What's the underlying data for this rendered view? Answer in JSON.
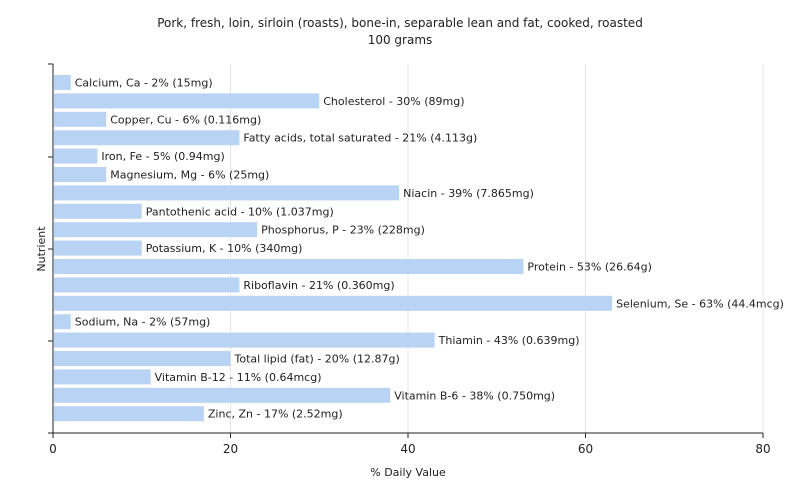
{
  "chart_data": {
    "type": "bar",
    "orientation": "horizontal",
    "title": "Pork, fresh, loin, sirloin (roasts), bone-in, separable lean and fat, cooked, roasted",
    "subtitle": "100 grams",
    "xlabel": "% Daily Value",
    "ylabel": "Nutrient",
    "xlim": [
      0,
      80
    ],
    "xticks": [
      0,
      20,
      40,
      60,
      80
    ],
    "grid": true,
    "bar_color": "#b9d3f5",
    "categories": [
      "Calcium, Ca",
      "Cholesterol",
      "Copper, Cu",
      "Fatty acids, total saturated",
      "Iron, Fe",
      "Magnesium, Mg",
      "Niacin",
      "Pantothenic acid",
      "Phosphorus, P",
      "Potassium, K",
      "Protein",
      "Riboflavin",
      "Selenium, Se",
      "Sodium, Na",
      "Thiamin",
      "Total lipid (fat)",
      "Vitamin B-12",
      "Vitamin B-6",
      "Zinc, Zn"
    ],
    "values": [
      2,
      30,
      6,
      21,
      5,
      6,
      39,
      10,
      23,
      10,
      53,
      21,
      63,
      2,
      43,
      20,
      11,
      38,
      17
    ],
    "labels": [
      "Calcium, Ca - 2% (15mg)",
      "Cholesterol - 30% (89mg)",
      "Copper, Cu - 6% (0.116mg)",
      "Fatty acids, total saturated - 21% (4.113g)",
      "Iron, Fe - 5% (0.94mg)",
      "Magnesium, Mg - 6% (25mg)",
      "Niacin - 39% (7.865mg)",
      "Pantothenic acid - 10% (1.037mg)",
      "Phosphorus, P - 23% (228mg)",
      "Potassium, K - 10% (340mg)",
      "Protein - 53% (26.64g)",
      "Riboflavin - 21% (0.360mg)",
      "Selenium, Se - 63% (44.4mcg)",
      "Sodium, Na - 2% (57mg)",
      "Thiamin - 43% (0.639mg)",
      "Total lipid (fat) - 20% (12.87g)",
      "Vitamin B-12 - 11% (0.64mcg)",
      "Vitamin B-6 - 38% (0.750mg)",
      "Zinc, Zn - 17% (2.52mg)"
    ]
  }
}
